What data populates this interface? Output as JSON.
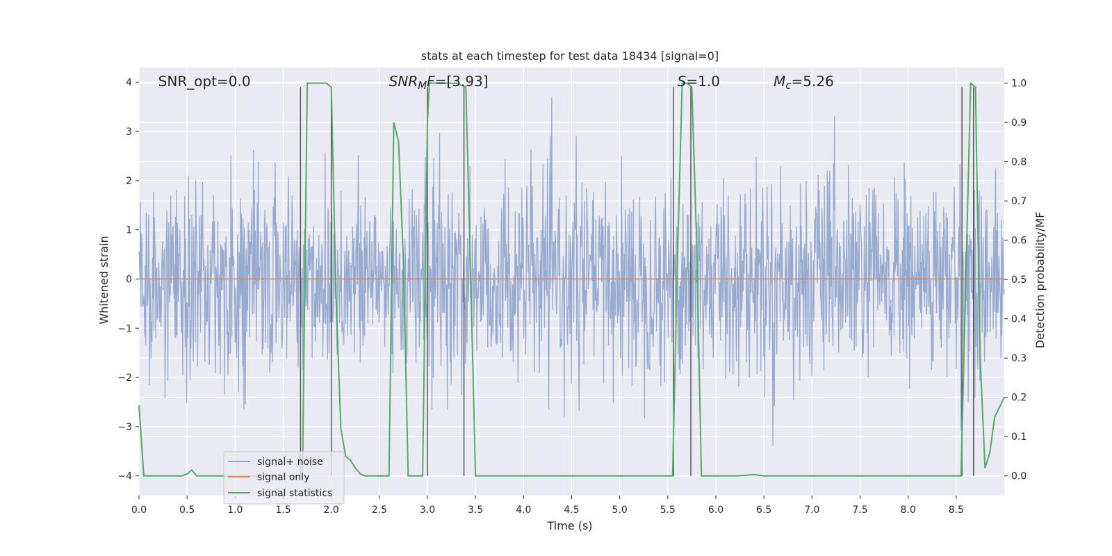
{
  "chart_data": {
    "type": "line",
    "title": "stats at each timestep for test data 18434 [signal=0]",
    "xlabel": "Time (s)",
    "ylabel_left": "Whitened strain",
    "ylabel_right": "Detection probability/MF",
    "xlim": [
      0.0,
      9.0
    ],
    "ylim_left": [
      -4.4,
      4.3
    ],
    "ylim_right": [
      -0.05,
      1.04
    ],
    "x_ticks": [
      "0.0",
      "0.5",
      "1.0",
      "1.5",
      "2.0",
      "2.5",
      "3.0",
      "3.5",
      "4.0",
      "4.5",
      "5.0",
      "5.5",
      "6.0",
      "6.5",
      "7.0",
      "7.5",
      "8.0",
      "8.5"
    ],
    "x_tick_values": [
      0,
      0.5,
      1,
      1.5,
      2,
      2.5,
      3,
      3.5,
      4,
      4.5,
      5,
      5.5,
      6,
      6.5,
      7,
      7.5,
      8,
      8.5
    ],
    "y_left_ticks": [
      "−4",
      "−3",
      "−2",
      "−1",
      "0",
      "1",
      "2",
      "3",
      "4"
    ],
    "y_left_tick_values": [
      -4,
      -3,
      -2,
      -1,
      0,
      1,
      2,
      3,
      4
    ],
    "y_right_ticks": [
      "0.0",
      "0.1",
      "0.2",
      "0.3",
      "0.4",
      "0.5",
      "0.6",
      "0.7",
      "0.8",
      "0.9",
      "1.0"
    ],
    "y_right_tick_values": [
      0,
      0.1,
      0.2,
      0.3,
      0.4,
      0.5,
      0.6,
      0.7,
      0.8,
      0.9,
      1.0
    ],
    "grid": true,
    "legend_position": "lower-left",
    "annotations": [
      {
        "parts": [
          {
            "text": "SNR_opt=0.0",
            "italic": false
          }
        ],
        "x": 0.2
      },
      {
        "parts": [
          {
            "text": "SNR",
            "italic": true
          },
          {
            "text": "M",
            "italic": true,
            "sub": true
          },
          {
            "text": "F",
            "italic": true
          },
          {
            "text": "=[3.93]",
            "italic": false
          }
        ],
        "x": 2.6
      },
      {
        "parts": [
          {
            "text": "S",
            "italic": true
          },
          {
            "text": "=1.0",
            "italic": false
          }
        ],
        "x": 5.6
      },
      {
        "parts": [
          {
            "text": "M",
            "italic": true
          },
          {
            "text": "c",
            "italic": true,
            "sub": true
          },
          {
            "text": "=5.26",
            "italic": false
          }
        ],
        "x": 6.6
      }
    ],
    "series": [
      {
        "name": "signal+ noise",
        "axis": "left",
        "color": "#8ea3cb",
        "style": "noise",
        "sigma": 1.0,
        "sample_count": 1800,
        "approx_range": [
          -3.9,
          3.7
        ]
      },
      {
        "name": "signal only",
        "axis": "left",
        "color": "#dd8452",
        "values_x": [
          0.0,
          9.0
        ],
        "values_y": [
          0.0,
          0.0
        ]
      },
      {
        "name": "signal statistics",
        "axis": "right",
        "color": "#55a868",
        "values_x": [
          0.0,
          0.05,
          0.15,
          0.3,
          0.45,
          0.5,
          0.55,
          0.6,
          0.65,
          0.8,
          1.0,
          1.2,
          1.4,
          1.5,
          1.55,
          1.6,
          1.65,
          1.7,
          1.75,
          1.95,
          2.0,
          2.05,
          2.1,
          2.15,
          2.2,
          2.25,
          2.3,
          2.35,
          2.4,
          2.5,
          2.6,
          2.65,
          2.7,
          2.75,
          2.8,
          2.85,
          2.9,
          2.95,
          3.0,
          3.02,
          3.05,
          3.1,
          3.3,
          3.4,
          3.45,
          3.5,
          3.55,
          4.0,
          4.5,
          5.0,
          5.5,
          5.55,
          5.6,
          5.65,
          5.7,
          5.75,
          5.8,
          5.85,
          5.9,
          6.0,
          6.2,
          6.4,
          6.5,
          7.0,
          7.5,
          8.0,
          8.4,
          8.5,
          8.55,
          8.6,
          8.65,
          8.7,
          8.72,
          8.75,
          8.8,
          8.85,
          8.9,
          9.0
        ],
        "values_y": [
          0.18,
          0.0,
          0.0,
          0.0,
          0.0,
          0.005,
          0.015,
          0.0,
          0.0,
          0.0,
          0.0,
          0.0,
          0.0,
          0.0,
          0.0,
          0.0,
          0.0,
          0.0,
          1.0,
          1.0,
          0.99,
          0.45,
          0.12,
          0.05,
          0.04,
          0.02,
          0.005,
          0.0,
          0.0,
          0.0,
          0.0,
          0.9,
          0.85,
          0.55,
          0.0,
          0.0,
          0.0,
          0.0,
          0.9,
          1.0,
          1.0,
          1.0,
          1.0,
          0.99,
          0.5,
          0.0,
          0.0,
          0.0,
          0.0,
          0.0,
          0.0,
          0.0,
          0.55,
          1.0,
          1.0,
          0.99,
          0.6,
          0.0,
          0.0,
          0.0,
          0.0,
          0.003,
          0.0,
          0.0,
          0.0,
          0.0,
          0.0,
          0.0,
          0.0,
          0.5,
          1.0,
          0.99,
          0.7,
          0.3,
          0.02,
          0.06,
          0.15,
          0.2
        ]
      }
    ],
    "vertical_markers_x": [
      1.68,
      2.0,
      3.0,
      3.38,
      5.56,
      5.74,
      8.56,
      8.68
    ]
  }
}
